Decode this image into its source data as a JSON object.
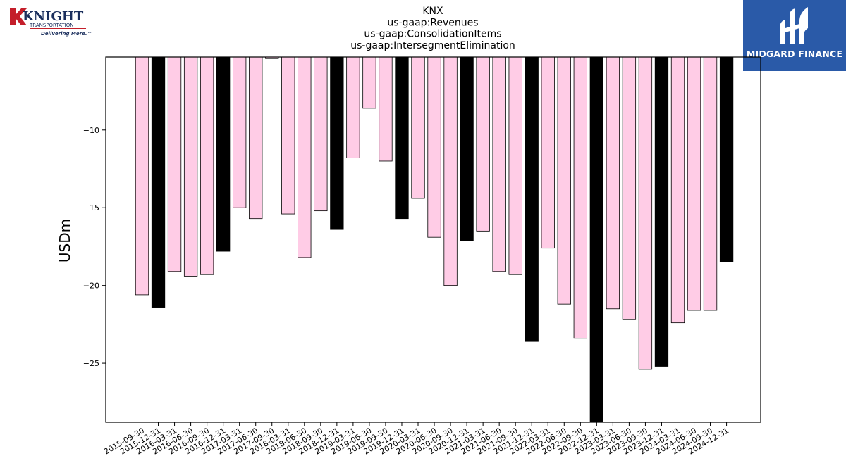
{
  "logos": {
    "left": {
      "brand": "KNIGHT",
      "sub": "TRANSPORTATION",
      "tagline": "Delivering More.™"
    },
    "right": {
      "brand": "MIDGARD FINANCE"
    }
  },
  "colors": {
    "pink": "#ffcce6",
    "black": "#000000",
    "midgard_blue": "#2a5aa8",
    "knight_red": "#c41e2a"
  },
  "chart_data": {
    "type": "bar",
    "title_lines": [
      "KNX",
      "us-gaap:Revenues",
      "us-gaap:ConsolidationItems",
      "us-gaap:IntersegmentElimination"
    ],
    "xlabel": "",
    "ylabel": "USDm",
    "ylim": [
      -28.8,
      -5.3
    ],
    "yticks": [
      -10,
      -15,
      -20,
      -25
    ],
    "ytick_labels": [
      "−10",
      "−15",
      "−20",
      "−25"
    ],
    "grid": false,
    "bar_colors_note": "Q4 (-12-31) bars black, other quarters pink",
    "categories": [
      "2015-09-30",
      "2015-12-31",
      "2016-03-31",
      "2016-06-30",
      "2016-09-30",
      "2016-12-31",
      "2017-03-31",
      "2017-06-30",
      "2017-09-30",
      "2018-03-31",
      "2018-06-30",
      "2018-09-30",
      "2018-12-31",
      "2019-03-31",
      "2019-06-30",
      "2019-09-30",
      "2019-12-31",
      "2020-03-31",
      "2020-06-30",
      "2020-09-30",
      "2020-12-31",
      "2021-03-31",
      "2021-06-30",
      "2021-09-30",
      "2021-12-31",
      "2022-03-31",
      "2022-06-30",
      "2022-09-30",
      "2022-12-31",
      "2023-03-31",
      "2023-06-30",
      "2023-09-30",
      "2023-12-31",
      "2024-03-31",
      "2024-06-30",
      "2024-09-30",
      "2024-12-31"
    ],
    "values": [
      -20.6,
      -21.4,
      -19.1,
      -19.4,
      -19.3,
      -17.8,
      -15.0,
      -15.7,
      -5.4,
      -15.4,
      -18.2,
      -15.2,
      -16.4,
      -11.8,
      -8.6,
      -12.0,
      -15.7,
      -14.4,
      -16.9,
      -20.0,
      -17.1,
      -16.5,
      -19.1,
      -19.3,
      -23.6,
      -17.6,
      -21.2,
      -23.4,
      -28.8,
      -21.5,
      -22.2,
      -25.4,
      -25.2,
      -22.4,
      -21.6,
      -21.6,
      -18.5
    ],
    "bar_x_positions": [
      0,
      1,
      2,
      3,
      4,
      5,
      6,
      7,
      8,
      9,
      10,
      11,
      12,
      13,
      14,
      15,
      16,
      17,
      18,
      19,
      20,
      21,
      22,
      23,
      24,
      25,
      26,
      27,
      28,
      29,
      30,
      31,
      32,
      33,
      34,
      35,
      36
    ]
  }
}
